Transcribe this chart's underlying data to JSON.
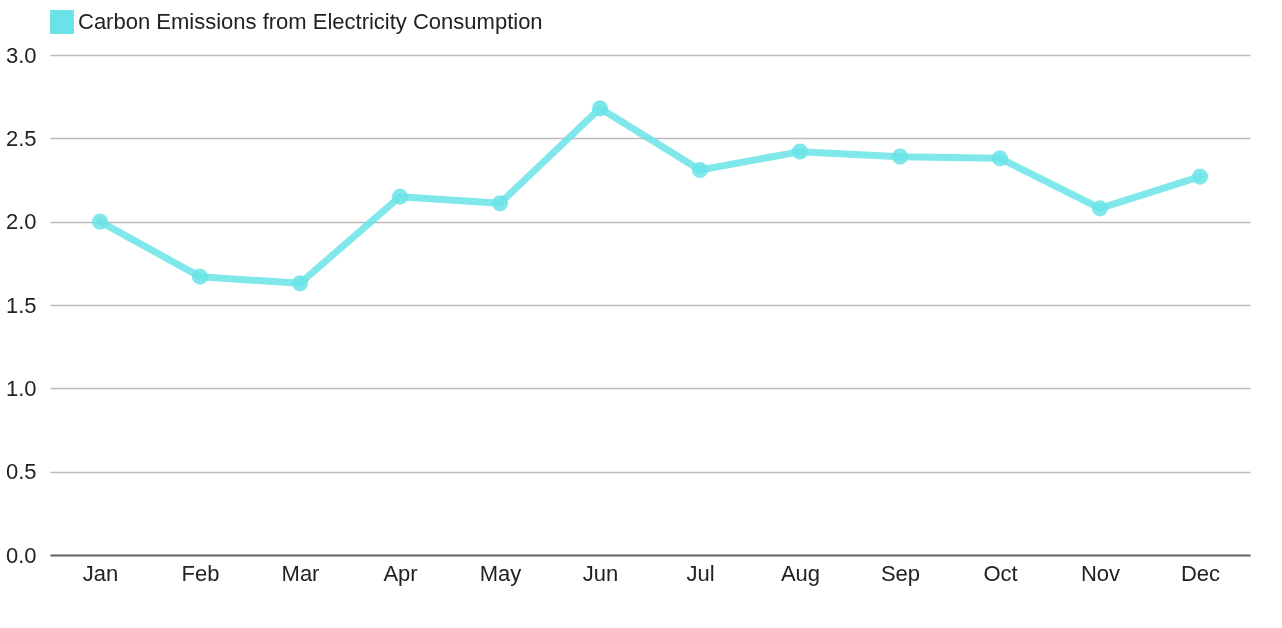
{
  "chart_data": {
    "type": "line",
    "categories": [
      "Jan",
      "Feb",
      "Mar",
      "Apr",
      "May",
      "Jun",
      "Jul",
      "Aug",
      "Sep",
      "Oct",
      "Nov",
      "Dec"
    ],
    "series": [
      {
        "name": "Carbon Emissions from Electricity Consumption",
        "color": "#6ae3e6",
        "values": [
          2.0,
          1.67,
          1.63,
          2.15,
          2.11,
          2.68,
          2.31,
          2.42,
          2.39,
          2.38,
          2.08,
          2.27
        ]
      }
    ],
    "ylim": [
      0,
      3.0
    ],
    "yticks": [
      {
        "value": 0,
        "label": "0.0"
      },
      {
        "value": 0.5,
        "label": "0.5"
      },
      {
        "value": 1,
        "label": "1.0"
      },
      {
        "value": 1.5,
        "label": "1.5"
      },
      {
        "value": 2,
        "label": "2.0"
      },
      {
        "value": 2.5,
        "label": "2.5"
      },
      {
        "value": 3,
        "label": "3.0"
      }
    ],
    "grid": "y",
    "legend": "top",
    "marker": "circle",
    "line_style": "solid"
  }
}
